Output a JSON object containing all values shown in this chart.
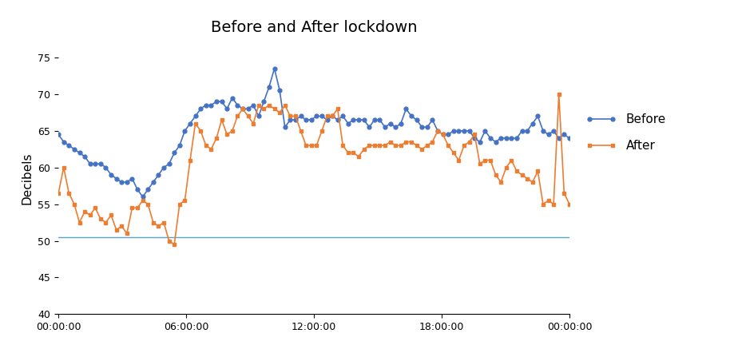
{
  "title": "Before and After lockdown",
  "ylabel": "Decibels",
  "ylim": [
    40,
    77
  ],
  "yticks": [
    40,
    45,
    50,
    55,
    60,
    65,
    70,
    75
  ],
  "hline_y": 50.5,
  "hline_color": "#5BA3C9",
  "before_color": "#4472C4",
  "after_color": "#ED7D31",
  "background_color": "#FFFFFF",
  "before_label": "Before",
  "after_label": "After",
  "xtick_hours": [
    0,
    6,
    12,
    18,
    24
  ],
  "xtick_labels": [
    "00:00:00",
    "06:00:00",
    "12:00:00",
    "18:00:00",
    "00:00:00"
  ],
  "before": [
    64.5,
    63.5,
    63,
    62.5,
    62,
    61.5,
    60.5,
    60.5,
    60.5,
    60,
    59,
    58.5,
    58,
    58,
    58.5,
    57,
    56,
    57,
    58,
    59,
    60,
    60.5,
    62,
    63,
    65,
    66,
    67,
    68,
    68.5,
    68.5,
    69,
    69,
    68,
    69.5,
    68.5,
    68,
    68,
    68.5,
    67,
    69,
    71,
    73.5,
    70.5,
    65.5,
    66.5,
    66.5,
    67,
    66.5,
    66.5,
    67,
    67,
    66.5,
    67,
    66.5,
    67,
    66,
    66.5,
    66.5,
    66.5,
    65.5,
    66.5,
    66.5,
    65.5,
    66,
    65.5,
    66,
    68,
    67,
    66.5,
    65.5,
    65.5,
    66.5,
    65,
    64.5,
    64.5,
    65,
    65,
    65,
    65,
    64,
    63.5,
    65,
    64,
    63.5,
    64,
    64,
    64,
    64,
    65,
    65,
    66,
    67,
    65,
    64.5,
    65,
    64,
    64.5,
    64
  ],
  "after": [
    56.5,
    60,
    56.5,
    55,
    52.5,
    54,
    53.5,
    54.5,
    53,
    52.5,
    53.5,
    51.5,
    52,
    51,
    54.5,
    54.5,
    55.5,
    55,
    52.5,
    52,
    52.5,
    50,
    49.5,
    55,
    55.5,
    61,
    66,
    65,
    63,
    62.5,
    64,
    66.5,
    64.5,
    65,
    67,
    68,
    67,
    66,
    68.5,
    68,
    68.5,
    68,
    67.5,
    68.5,
    67,
    67,
    65,
    63,
    63,
    63,
    65,
    67,
    67,
    68,
    63,
    62,
    62,
    61.5,
    62.5,
    63,
    63,
    63,
    63,
    63.5,
    63,
    63,
    63.5,
    63.5,
    63,
    62.5,
    63,
    63.5,
    65,
    64.5,
    63,
    62,
    61,
    63,
    63.5,
    64.5,
    60.5,
    61,
    61,
    59,
    58,
    60,
    61,
    59.5,
    59,
    58.5,
    58,
    59.5,
    55,
    55.5,
    55,
    70,
    56.5,
    55
  ]
}
